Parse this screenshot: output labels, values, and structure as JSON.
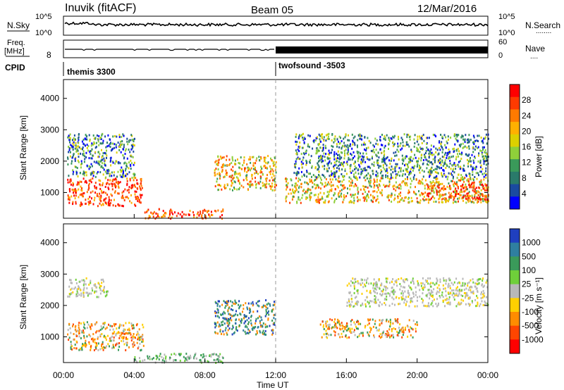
{
  "header": {
    "station": "Inuvik (fitACF)",
    "beam": "Beam 05",
    "date": "12/Mar/2016"
  },
  "nsky_panel": {
    "left_label": "N.Sky",
    "right_label": "N.Search",
    "right_dots": "........",
    "left_ticks": [
      "10^5",
      "10^0"
    ],
    "right_ticks": [
      "10^5",
      "10^0"
    ]
  },
  "freq_panel": {
    "left_label_1": "Freq.",
    "left_label_2": "[MHz]",
    "right_label": "Nave",
    "right_dots": "....",
    "left_ticks": [
      "8"
    ],
    "right_ticks": [
      "60",
      "0"
    ]
  },
  "cpid_panel": {
    "label": "CPID",
    "programs": [
      "themis 3300",
      "twofsound -3503"
    ]
  },
  "power_panel": {
    "ylabel": "Slant Range [km]",
    "yticks": [
      "4000",
      "3000",
      "2000",
      "1000"
    ],
    "colorbar_label": "Power [dB]",
    "colorbar_ticks": [
      "28",
      "24",
      "20",
      "16",
      "12",
      "8",
      "4"
    ],
    "colorbar_colors": [
      "#ff0000",
      "#ff3a00",
      "#ff7a00",
      "#ffb000",
      "#ddd000",
      "#8fcf3a",
      "#3a9a5a",
      "#2a7a6a",
      "#1a4aa0",
      "#0000ff"
    ]
  },
  "velocity_panel": {
    "ylabel": "Slant Range [km]",
    "yticks": [
      "4000",
      "3000",
      "2000",
      "1000"
    ],
    "colorbar_label": "Velocity [m s⁻¹]",
    "colorbar_ticks": [
      "1000",
      "500",
      "100",
      "25",
      "-25",
      "-100",
      "-500",
      "-1000"
    ],
    "colorbar_colors": [
      "#1f3fbf",
      "#2f7fa0",
      "#3a9a5a",
      "#6fcf3a",
      "#b8b8b8",
      "#ffd000",
      "#ff8c00",
      "#ff4500",
      "#ff0000"
    ]
  },
  "x_axis": {
    "ticks": [
      "00:00",
      "04:00",
      "08:00",
      "12:00",
      "16:00",
      "20:00",
      "00:00"
    ],
    "label": "Time UT"
  },
  "chart_data": {
    "type": "heatmap",
    "title": "Inuvik (fitACF)  Beam 05  12/Mar/2016",
    "xlabel": "Time UT",
    "ylabel": "Slant Range [km]",
    "x_range": [
      "00:00",
      "24:00"
    ],
    "ylim": [
      180,
      4600
    ],
    "power_scale_db": [
      0,
      30
    ],
    "velocity_scale": [
      -1000,
      1000
    ],
    "programs": [
      {
        "name": "themis 3300",
        "start": "00:00",
        "end": "12:00"
      },
      {
        "name": "twofsound -3503",
        "start": "12:00",
        "end": "24:00"
      }
    ],
    "power_echo_regions": [
      {
        "t0": 0.2,
        "t1": 4.5,
        "r0": 600,
        "r1": 1500,
        "level": "high"
      },
      {
        "t0": 4.5,
        "t1": 9.0,
        "r0": 200,
        "r1": 500,
        "level": "high"
      },
      {
        "t0": 0.2,
        "t1": 4.0,
        "r0": 1500,
        "r1": 2900,
        "level": "low"
      },
      {
        "t0": 8.5,
        "t1": 12.0,
        "r0": 1100,
        "r1": 2200,
        "level": "mid"
      },
      {
        "t0": 12.5,
        "t1": 24.0,
        "r0": 700,
        "r1": 1500,
        "level": "mid"
      },
      {
        "t0": 13.0,
        "t1": 24.0,
        "r0": 1500,
        "r1": 2900,
        "level": "low"
      },
      {
        "t0": 20.5,
        "t1": 24.0,
        "r0": 800,
        "r1": 1300,
        "level": "high"
      }
    ],
    "velocity_echo_regions": [
      {
        "t0": 0.2,
        "t1": 4.5,
        "r0": 600,
        "r1": 1500,
        "vel": "-500"
      },
      {
        "t0": 0.2,
        "t1": 2.5,
        "r0": 2300,
        "r1": 2900,
        "vel": "0"
      },
      {
        "t0": 4.0,
        "t1": 9.0,
        "r0": 200,
        "r1": 500,
        "vel": "100"
      },
      {
        "t0": 8.5,
        "t1": 12.0,
        "r0": 1100,
        "r1": 2200,
        "vel": "500"
      },
      {
        "t0": 14.5,
        "t1": 20.0,
        "r0": 1000,
        "r1": 1600,
        "vel": "-500"
      },
      {
        "t0": 16.0,
        "t1": 24.0,
        "r0": 2000,
        "r1": 2900,
        "vel": "0"
      }
    ]
  }
}
